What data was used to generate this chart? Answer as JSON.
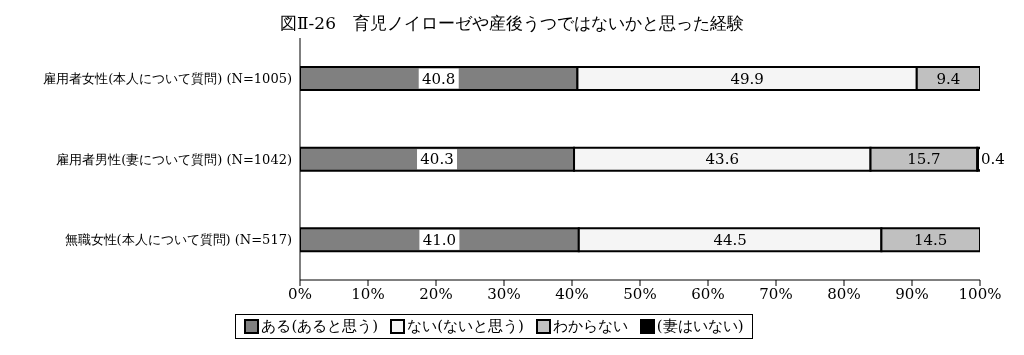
{
  "chart_data": {
    "type": "bar",
    "orientation": "horizontal",
    "stacked": true,
    "title": "図Ⅱ-26　育児ノイローゼや産後うつではないかと思った経験",
    "categories": [
      "雇用者女性(本人について質問) (N=1005)",
      "雇用者男性(妻について質問) (N=1042)",
      "無職女性(本人について質問) (N=517)"
    ],
    "series": [
      {
        "name": "ある(あると思う)",
        "color": "#808080",
        "values": [
          40.8,
          40.3,
          41.0
        ],
        "value_labels": [
          "40.8",
          "40.3",
          "41.0"
        ]
      },
      {
        "name": "ない(ないと思う)",
        "color": "#f5f5f5",
        "values": [
          49.9,
          43.6,
          44.5
        ],
        "value_labels": [
          "49.9",
          "43.6",
          "44.5"
        ]
      },
      {
        "name": "わからない",
        "color": "#c0c0c0",
        "values": [
          9.4,
          15.7,
          14.5
        ],
        "value_labels": [
          "9.4",
          "15.7",
          "14.5"
        ]
      },
      {
        "name": "(妻はいない)",
        "color": "#000000",
        "values": [
          null,
          0.4,
          null
        ],
        "value_labels": [
          null,
          "0.4",
          null
        ]
      }
    ],
    "xlim": [
      0,
      100
    ],
    "xticks": [
      {
        "value": 0,
        "label": "0%"
      },
      {
        "value": 10,
        "label": "10%"
      },
      {
        "value": 20,
        "label": "20%"
      },
      {
        "value": 30,
        "label": "30%"
      },
      {
        "value": 40,
        "label": "40%"
      },
      {
        "value": 50,
        "label": "50%"
      },
      {
        "value": 60,
        "label": "60%"
      },
      {
        "value": 70,
        "label": "70%"
      },
      {
        "value": 80,
        "label": "80%"
      },
      {
        "value": 90,
        "label": "90%"
      },
      {
        "value": 100,
        "label": "100%"
      }
    ],
    "legend": "bottom",
    "grid": false
  }
}
